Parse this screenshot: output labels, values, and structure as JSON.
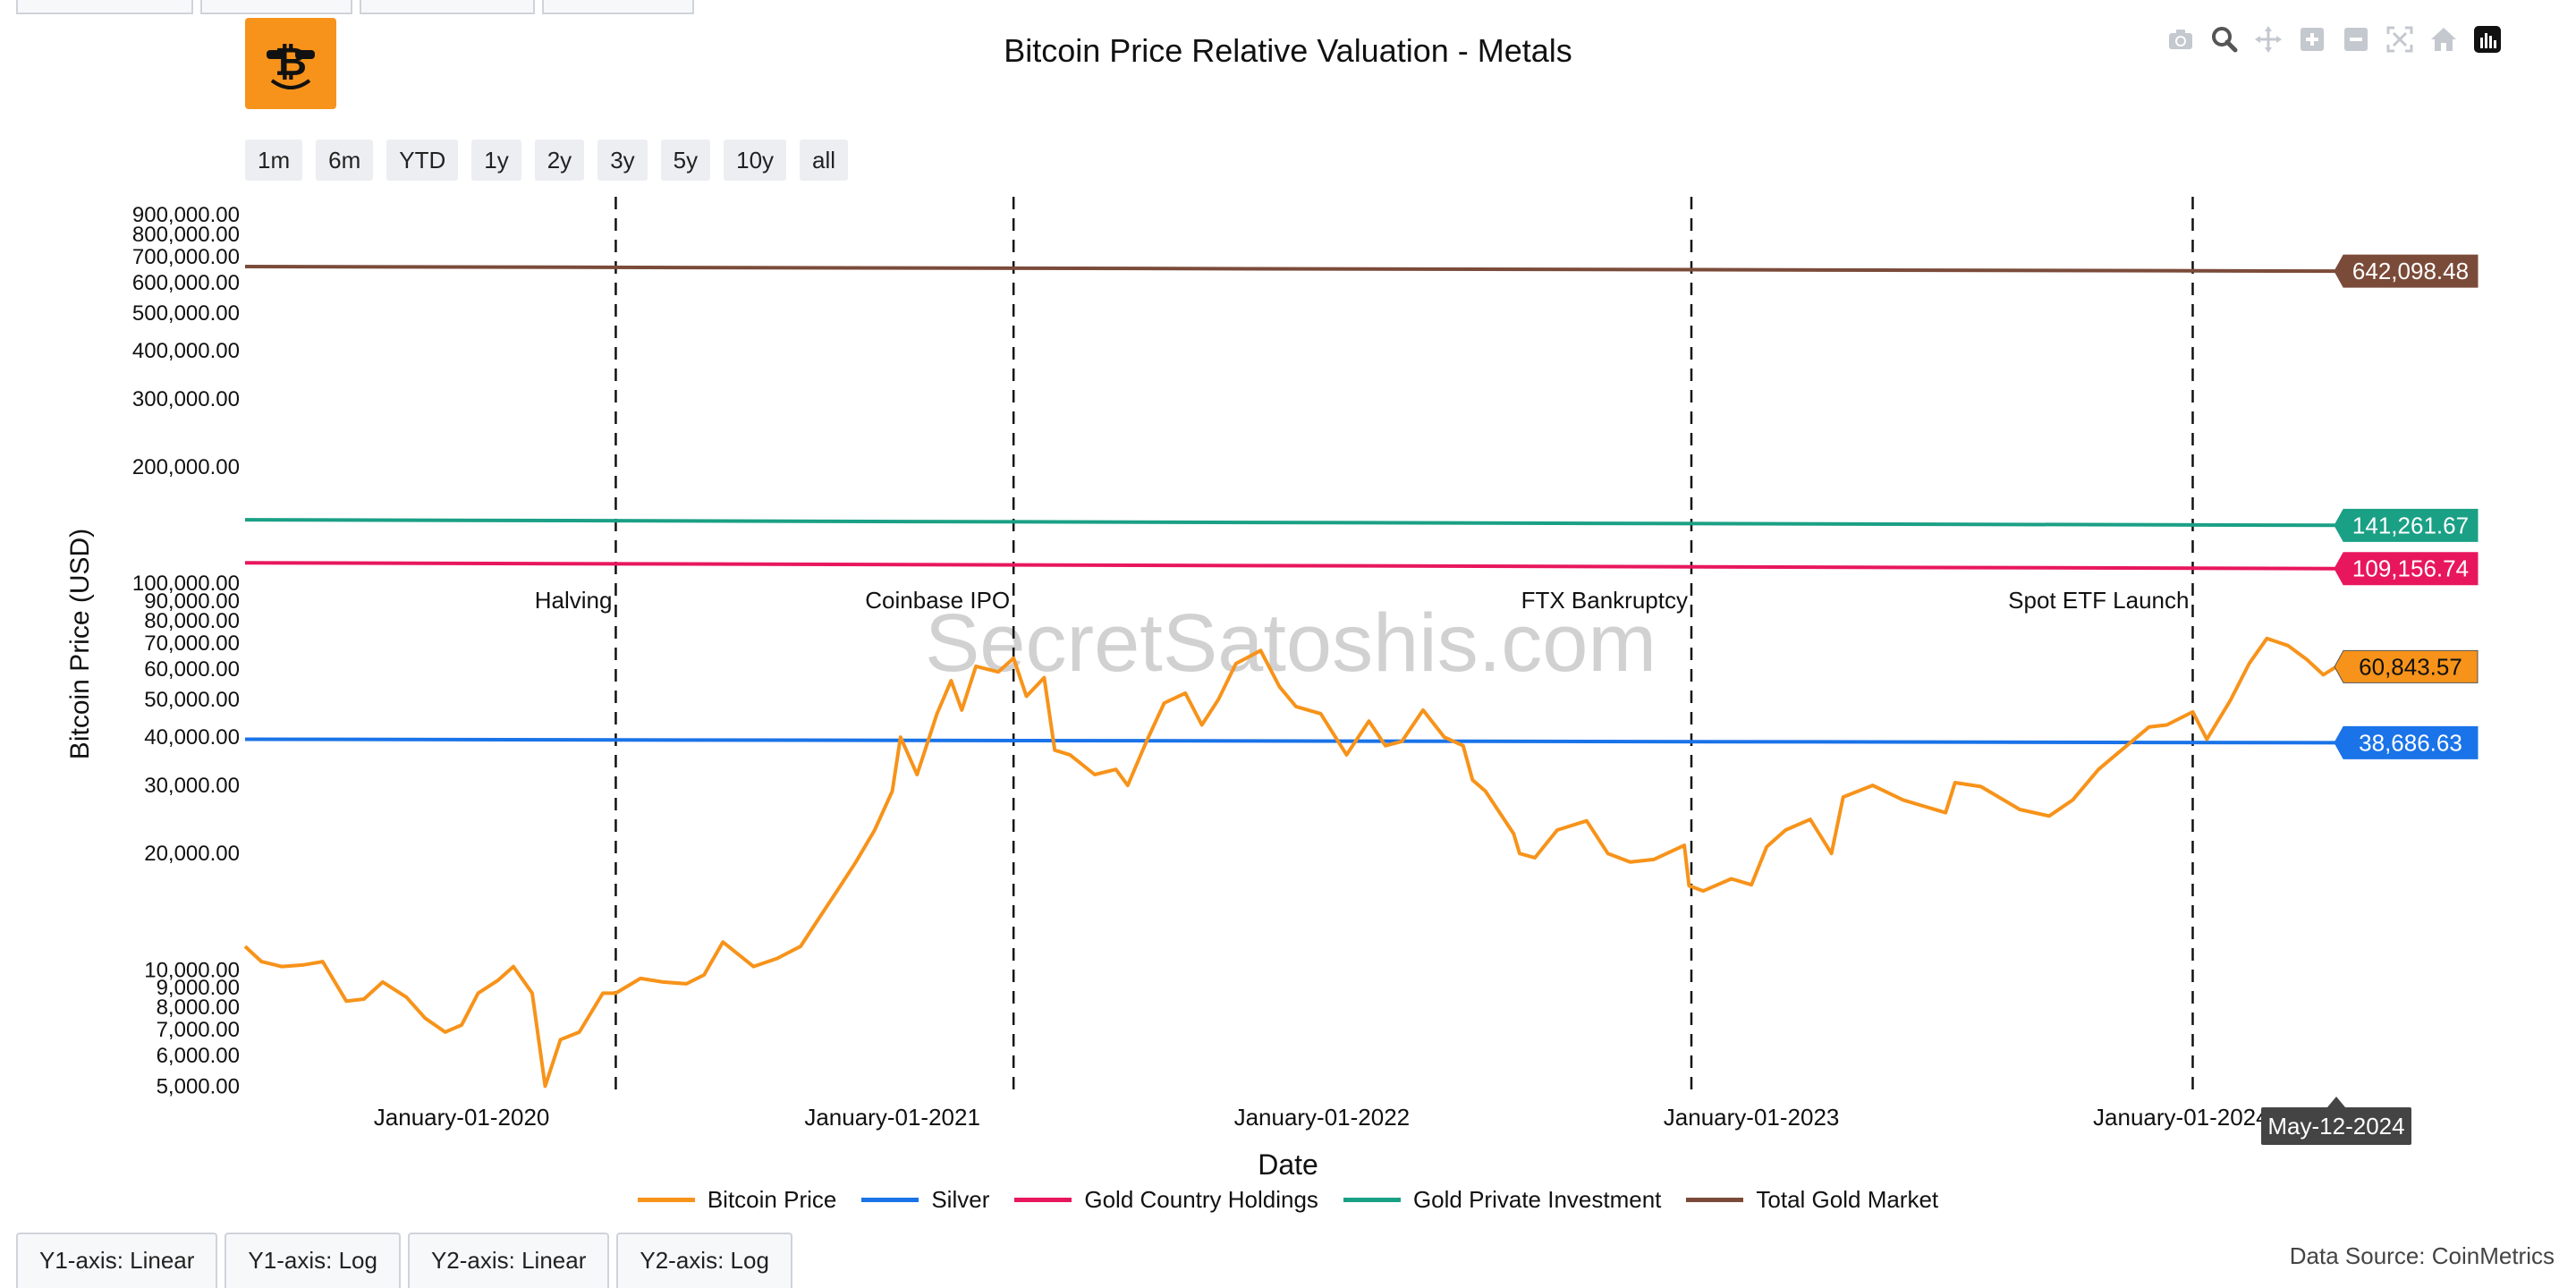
{
  "title": "Bitcoin Price Relative Valuation - Metals",
  "watermark": "SecretSatoshis.com",
  "range_buttons": [
    "1m",
    "6m",
    "YTD",
    "1y",
    "2y",
    "3y",
    "5y",
    "10y",
    "all"
  ],
  "modebar_icons": [
    "camera-icon",
    "zoom-icon",
    "pan-icon",
    "zoom-in-icon",
    "zoom-out-icon",
    "autoscale-icon",
    "home-icon",
    "chart-logo-icon"
  ],
  "axis_tabs": [
    "Y1-axis: Linear",
    "Y1-axis: Log",
    "Y2-axis: Linear",
    "Y2-axis: Log"
  ],
  "data_source": "Data Source: CoinMetrics",
  "hover_date": "May-12-2024",
  "chart_data": {
    "type": "line",
    "title": "Bitcoin Price Relative Valuation - Metals",
    "xlabel": "Date",
    "ylabel": "Bitcoin Price (USD)",
    "y_scale": "log",
    "xlim": [
      "2019-07-01",
      "2024-05-12"
    ],
    "ylim": [
      4700,
      1000000
    ],
    "x_ticks": [
      "2020-01-01",
      "2021-01-01",
      "2022-01-01",
      "2023-01-01",
      "2024-01-01"
    ],
    "x_tick_labels": [
      "January-01-2020",
      "January-01-2021",
      "January-01-2022",
      "January-01-2023",
      "January-01-2024"
    ],
    "y_ticks": [
      5000,
      6000,
      7000,
      8000,
      9000,
      10000,
      20000,
      30000,
      40000,
      50000,
      60000,
      70000,
      80000,
      90000,
      100000,
      200000,
      300000,
      400000,
      500000,
      600000,
      700000,
      800000,
      900000
    ],
    "y_tick_labels": [
      "5,000.00",
      "6,000.00",
      "7,000.00",
      "8,000.00",
      "9,000.00",
      "10,000.00",
      "20,000.00",
      "30,000.00",
      "40,000.00",
      "50,000.00",
      "60,000.00",
      "70,000.00",
      "80,000.00",
      "90,000.00",
      "100,000.00",
      "200,000.00",
      "300,000.00",
      "400,000.00",
      "500,000.00",
      "600,000.00",
      "700,000.00",
      "800,000.00",
      "900,000.00"
    ],
    "grid": false,
    "legend_position": "bottom",
    "events": [
      {
        "date": "2020-05-11",
        "label": "Halving"
      },
      {
        "date": "2021-04-14",
        "label": "Coinbase IPO"
      },
      {
        "date": "2022-11-11",
        "label": "FTX Bankruptcy"
      },
      {
        "date": "2024-01-11",
        "label": "Spot ETF Launch"
      }
    ],
    "series": [
      {
        "name": "Bitcoin Price",
        "color": "#f7931a",
        "last_label": "60,843.57",
        "x": [
          "2019-07-01",
          "2019-07-15",
          "2019-08-01",
          "2019-08-20",
          "2019-09-05",
          "2019-09-25",
          "2019-10-10",
          "2019-10-26",
          "2019-11-15",
          "2019-12-01",
          "2019-12-18",
          "2020-01-01",
          "2020-01-15",
          "2020-02-01",
          "2020-02-14",
          "2020-03-01",
          "2020-03-12",
          "2020-03-25",
          "2020-04-10",
          "2020-04-30",
          "2020-05-11",
          "2020-06-01",
          "2020-06-20",
          "2020-07-10",
          "2020-07-25",
          "2020-08-10",
          "2020-09-05",
          "2020-09-25",
          "2020-10-15",
          "2020-10-30",
          "2020-11-15",
          "2020-12-01",
          "2020-12-17",
          "2021-01-01",
          "2021-01-08",
          "2021-01-22",
          "2021-02-08",
          "2021-02-20",
          "2021-03-01",
          "2021-03-13",
          "2021-04-01",
          "2021-04-14",
          "2021-04-25",
          "2021-05-10",
          "2021-05-19",
          "2021-06-01",
          "2021-06-22",
          "2021-07-10",
          "2021-07-20",
          "2021-08-05",
          "2021-08-20",
          "2021-09-07",
          "2021-09-21",
          "2021-10-05",
          "2021-10-20",
          "2021-11-10",
          "2021-11-26",
          "2021-12-10",
          "2021-12-31",
          "2022-01-22",
          "2022-02-10",
          "2022-02-24",
          "2022-03-10",
          "2022-03-28",
          "2022-04-15",
          "2022-05-01",
          "2022-05-09",
          "2022-05-20",
          "2022-06-13",
          "2022-06-18",
          "2022-07-01",
          "2022-07-20",
          "2022-08-14",
          "2022-09-01",
          "2022-09-20",
          "2022-10-10",
          "2022-11-05",
          "2022-11-09",
          "2022-11-21",
          "2022-12-15",
          "2023-01-01",
          "2023-01-14",
          "2023-01-30",
          "2023-02-20",
          "2023-03-10",
          "2023-03-20",
          "2023-04-14",
          "2023-05-10",
          "2023-06-15",
          "2023-06-23",
          "2023-07-15",
          "2023-08-17",
          "2023-09-11",
          "2023-10-01",
          "2023-10-23",
          "2023-11-09",
          "2023-12-05",
          "2023-12-20",
          "2024-01-11",
          "2024-01-23",
          "2024-02-12",
          "2024-02-28",
          "2024-03-14",
          "2024-04-01",
          "2024-04-17",
          "2024-05-01",
          "2024-05-12"
        ],
        "values": [
          11500,
          10500,
          10200,
          10300,
          10500,
          8300,
          8400,
          9300,
          8500,
          7500,
          6900,
          7200,
          8700,
          9400,
          10200,
          8700,
          5000,
          6600,
          6900,
          8700,
          8700,
          9500,
          9300,
          9200,
          9700,
          11800,
          10200,
          10700,
          11500,
          13500,
          16000,
          19000,
          23000,
          29000,
          40000,
          32000,
          46000,
          56000,
          47000,
          61000,
          59000,
          64000,
          51000,
          57000,
          37000,
          36000,
          32000,
          33000,
          30000,
          39000,
          49000,
          52000,
          43000,
          50000,
          62000,
          67000,
          54000,
          48000,
          46000,
          36000,
          44000,
          38000,
          39000,
          47000,
          40000,
          38000,
          31000,
          29000,
          22500,
          20000,
          19500,
          23000,
          24300,
          20000,
          19000,
          19300,
          21000,
          16500,
          16000,
          17200,
          16600,
          20800,
          23000,
          24500,
          20000,
          28000,
          30000,
          27500,
          25500,
          30500,
          29800,
          26000,
          25000,
          27500,
          33000,
          36500,
          42500,
          43000,
          46500,
          39500,
          49800,
          62000,
          72000,
          69000,
          63500,
          58000,
          60843.57
        ]
      },
      {
        "name": "Silver",
        "color": "#1a73e8",
        "last_label": "38,686.63",
        "x": [
          "2019-07-01",
          "2024-05-12"
        ],
        "values": [
          39500,
          38686.63
        ]
      },
      {
        "name": "Gold Country Holdings",
        "color": "#e8175d",
        "last_label": "109,156.74",
        "x": [
          "2019-07-01",
          "2024-05-12"
        ],
        "values": [
          113000,
          109156.74
        ]
      },
      {
        "name": "Gold Private Investment",
        "color": "#1aa085",
        "last_label": "141,261.67",
        "x": [
          "2019-07-01",
          "2024-05-12"
        ],
        "values": [
          146000,
          141261.67
        ]
      },
      {
        "name": "Total Gold Market",
        "color": "#7b4b3a",
        "last_label": "642,098.48",
        "x": [
          "2019-07-01",
          "2024-05-12"
        ],
        "values": [
          660000,
          642098.48
        ]
      }
    ]
  }
}
